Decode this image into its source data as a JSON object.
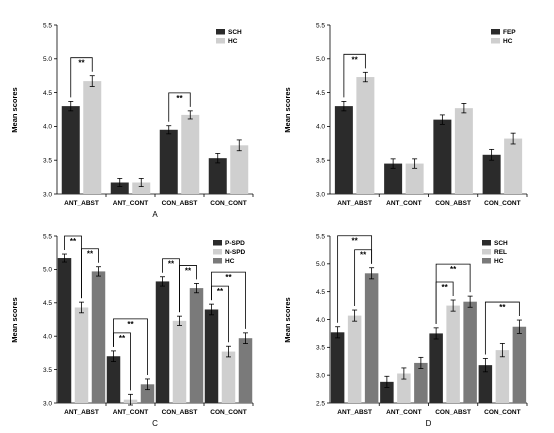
{
  "chart_data": [
    {
      "panel": "A",
      "type": "bar",
      "ylabel": "Mean scores",
      "ylim": [
        3.0,
        5.5
      ],
      "yticks": [
        3.0,
        3.5,
        4.0,
        4.5,
        5.0,
        5.5
      ],
      "categories": [
        "ANT_ABST",
        "ANT_CONT",
        "CON_ABST",
        "CON_CONT"
      ],
      "series": [
        {
          "name": "SCH",
          "color": "#2b2b2b",
          "values": [
            4.3,
            3.17,
            3.95,
            3.53
          ],
          "errors": [
            0.07,
            0.06,
            0.06,
            0.07
          ]
        },
        {
          "name": "HC",
          "color": "#cfcfcf",
          "values": [
            4.67,
            3.17,
            4.17,
            3.72
          ],
          "errors": [
            0.08,
            0.06,
            0.06,
            0.08
          ]
        }
      ],
      "significance": [
        {
          "category": 0,
          "from": 0,
          "to": 1,
          "label": "**"
        },
        {
          "category": 2,
          "from": 0,
          "to": 1,
          "label": "**"
        }
      ],
      "legend": "top-right"
    },
    {
      "panel": "",
      "type": "bar",
      "ylabel": "Mean scores",
      "ylim": [
        3.0,
        5.5
      ],
      "yticks": [
        3.0,
        3.5,
        4.0,
        4.5,
        5.0,
        5.5
      ],
      "categories": [
        "ANT_ABST",
        "ANT_CONT",
        "CON_ABST",
        "CON_CONT"
      ],
      "series": [
        {
          "name": "FEP",
          "color": "#2b2b2b",
          "values": [
            4.3,
            3.45,
            4.1,
            3.58
          ],
          "errors": [
            0.07,
            0.07,
            0.07,
            0.08
          ]
        },
        {
          "name": "HC",
          "color": "#cfcfcf",
          "values": [
            4.73,
            3.45,
            4.27,
            3.82
          ],
          "errors": [
            0.07,
            0.07,
            0.07,
            0.08
          ]
        }
      ],
      "significance": [
        {
          "category": 0,
          "from": 0,
          "to": 1,
          "label": "**"
        }
      ],
      "legend": "top-right"
    },
    {
      "panel": "C",
      "type": "bar",
      "ylabel": "Mean scores",
      "ylim": [
        3.0,
        5.5
      ],
      "yticks": [
        3.0,
        3.5,
        4.0,
        4.5,
        5.0,
        5.5
      ],
      "categories": [
        "ANT_ABST",
        "ANT_CONT",
        "CON_ABST",
        "CON_CONT"
      ],
      "series": [
        {
          "name": "P-SPD",
          "color": "#2b2b2b",
          "values": [
            5.17,
            3.7,
            4.82,
            4.4
          ],
          "errors": [
            0.06,
            0.08,
            0.07,
            0.08
          ]
        },
        {
          "name": "N-SPD",
          "color": "#cfcfcf",
          "values": [
            4.43,
            3.05,
            4.23,
            3.77
          ],
          "errors": [
            0.08,
            0.08,
            0.07,
            0.08
          ]
        },
        {
          "name": "HC",
          "color": "#7a7a7a",
          "values": [
            4.97,
            3.28,
            4.72,
            3.97
          ],
          "errors": [
            0.07,
            0.08,
            0.07,
            0.08
          ]
        }
      ],
      "significance": [
        {
          "category": 0,
          "from": 0,
          "to": 1,
          "label": "**",
          "level": 0
        },
        {
          "category": 0,
          "from": 1,
          "to": 2,
          "label": "**",
          "level": 0
        },
        {
          "category": 1,
          "from": 0,
          "to": 1,
          "label": "**",
          "level": 0
        },
        {
          "category": 1,
          "from": 0,
          "to": 2,
          "label": "**",
          "level": 1
        },
        {
          "category": 2,
          "from": 0,
          "to": 1,
          "label": "**",
          "level": 0
        },
        {
          "category": 2,
          "from": 1,
          "to": 2,
          "label": "**",
          "level": 0
        },
        {
          "category": 3,
          "from": 0,
          "to": 1,
          "label": "**",
          "level": 0
        },
        {
          "category": 3,
          "from": 0,
          "to": 2,
          "label": "**",
          "level": 1
        }
      ],
      "legend": "top-right"
    },
    {
      "panel": "D",
      "type": "bar",
      "ylabel": "Mean scores",
      "ylim": [
        2.5,
        5.5
      ],
      "yticks": [
        2.5,
        3.0,
        3.5,
        4.0,
        4.5,
        5.0,
        5.5
      ],
      "categories": [
        "ANT_ABST",
        "ANT_CONT",
        "CON_ABST",
        "CON_CONT"
      ],
      "series": [
        {
          "name": "SCH",
          "color": "#2b2b2b",
          "values": [
            3.77,
            2.88,
            3.75,
            3.18
          ],
          "errors": [
            0.1,
            0.1,
            0.1,
            0.12
          ]
        },
        {
          "name": "REL",
          "color": "#cfcfcf",
          "values": [
            4.07,
            3.03,
            4.25,
            3.45
          ],
          "errors": [
            0.1,
            0.1,
            0.1,
            0.12
          ]
        },
        {
          "name": "HC",
          "color": "#7a7a7a",
          "values": [
            4.83,
            3.22,
            4.32,
            3.87
          ],
          "errors": [
            0.1,
            0.1,
            0.1,
            0.12
          ]
        }
      ],
      "significance": [
        {
          "category": 0,
          "from": 0,
          "to": 2,
          "label": "**",
          "level": 1
        },
        {
          "category": 0,
          "from": 1,
          "to": 2,
          "label": "**",
          "level": 0
        },
        {
          "category": 2,
          "from": 0,
          "to": 1,
          "label": "**",
          "level": 0
        },
        {
          "category": 2,
          "from": 0,
          "to": 2,
          "label": "**",
          "level": 1
        },
        {
          "category": 3,
          "from": 0,
          "to": 2,
          "label": "**",
          "level": 0
        }
      ],
      "legend": "top-right"
    }
  ]
}
